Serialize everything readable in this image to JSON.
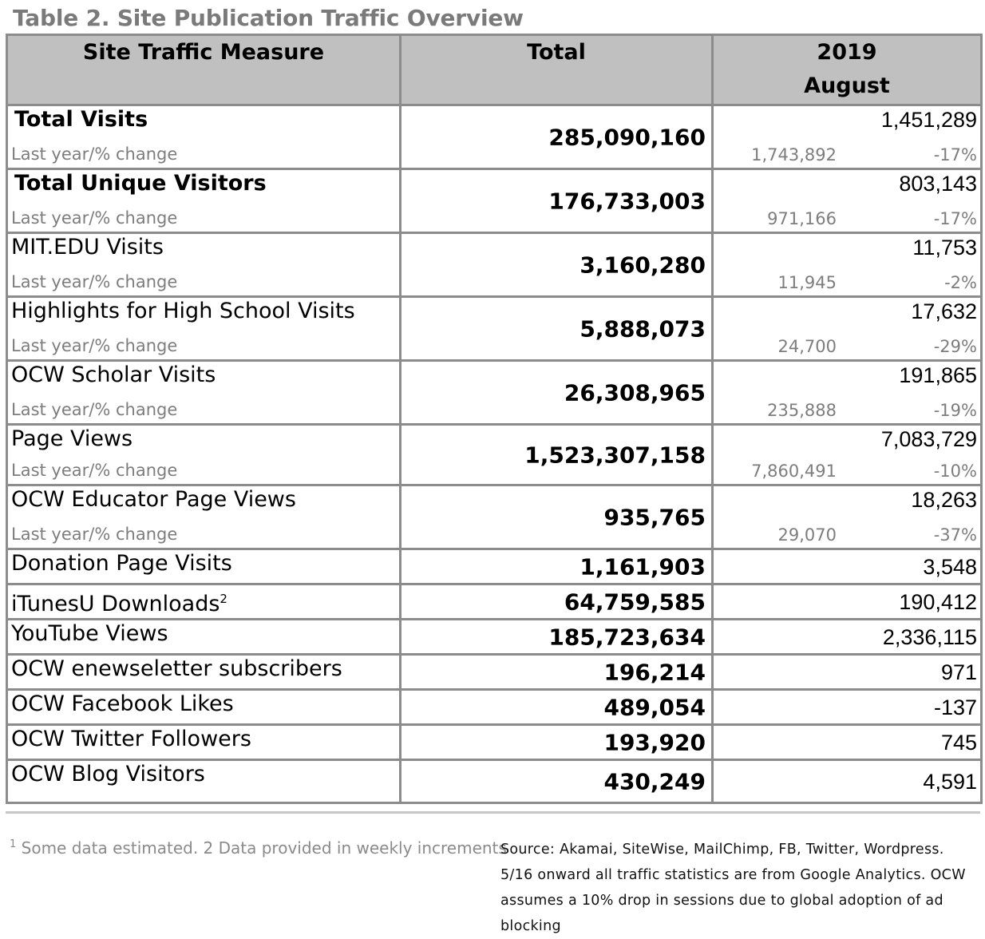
{
  "title": "Table 2. Site Publication Traffic Overview",
  "header": {
    "measure": "Site Traffic Measure",
    "total": "Total",
    "year": "2019",
    "month": "August"
  },
  "sub_label": "Last year/% change",
  "rows_with_change": [
    {
      "label": "Total Visits",
      "bold": true,
      "total": "285,090,160",
      "current": "1,451,289",
      "last_year": "1,743,892",
      "change": "-17%"
    },
    {
      "label": "Total Unique Visitors",
      "bold": true,
      "total": "176,733,003",
      "current": "803,143",
      "last_year": "971,166",
      "change": "-17%"
    },
    {
      "label": "MIT.EDU Visits",
      "bold": false,
      "total": "3,160,280",
      "current": "11,753",
      "last_year": "11,945",
      "change": "-2%"
    },
    {
      "label": "Highlights for High School Visits",
      "bold": false,
      "total": "5,888,073",
      "current": "17,632",
      "last_year": "24,700",
      "change": "-29%"
    },
    {
      "label": "OCW Scholar Visits",
      "bold": false,
      "total": "26,308,965",
      "current": "191,865",
      "last_year": "235,888",
      "change": "-19%"
    },
    {
      "label": "Page Views",
      "bold": false,
      "total": "1,523,307,158",
      "current": "7,083,729",
      "last_year": "7,860,491",
      "change": "-10%"
    },
    {
      "label": "OCW Educator Page Views",
      "bold": false,
      "total": "935,765",
      "current": "18,263",
      "last_year": "29,070",
      "change": "-37%"
    }
  ],
  "rows_simple": [
    {
      "label": "Donation Page Visits",
      "sup": "",
      "total": "1,161,903",
      "current": "3,548"
    },
    {
      "label": "iTunesU Downloads",
      "sup": "2",
      "total": "64,759,585",
      "current": "190,412"
    },
    {
      "label": "YouTube Views",
      "sup": "",
      "total": "185,723,634",
      "current": "2,336,115"
    },
    {
      "label": "OCW enewseletter subscribers",
      "sup": "",
      "total": "196,214",
      "current": "971"
    },
    {
      "label": "OCW Facebook Likes",
      "sup": "",
      "total": "489,054",
      "current": "-137"
    },
    {
      "label": "OCW Twitter Followers",
      "sup": "",
      "total": "193,920",
      "current": "745"
    },
    {
      "label": "OCW Blog Visitors",
      "sup": "",
      "total": "430,249",
      "current": "4,591"
    }
  ],
  "footnote": {
    "marker": "1",
    "text": " Some data estimated.  2 Data provided in weekly increments"
  },
  "source": "Source: Akamai, SiteWise,  MailChimp, FB, Twitter, Wordpress. 5/16 onward all traffic statistics are from Google Analytics. OCW assumes a 10% drop in sessions due to global adoption of ad blocking"
}
